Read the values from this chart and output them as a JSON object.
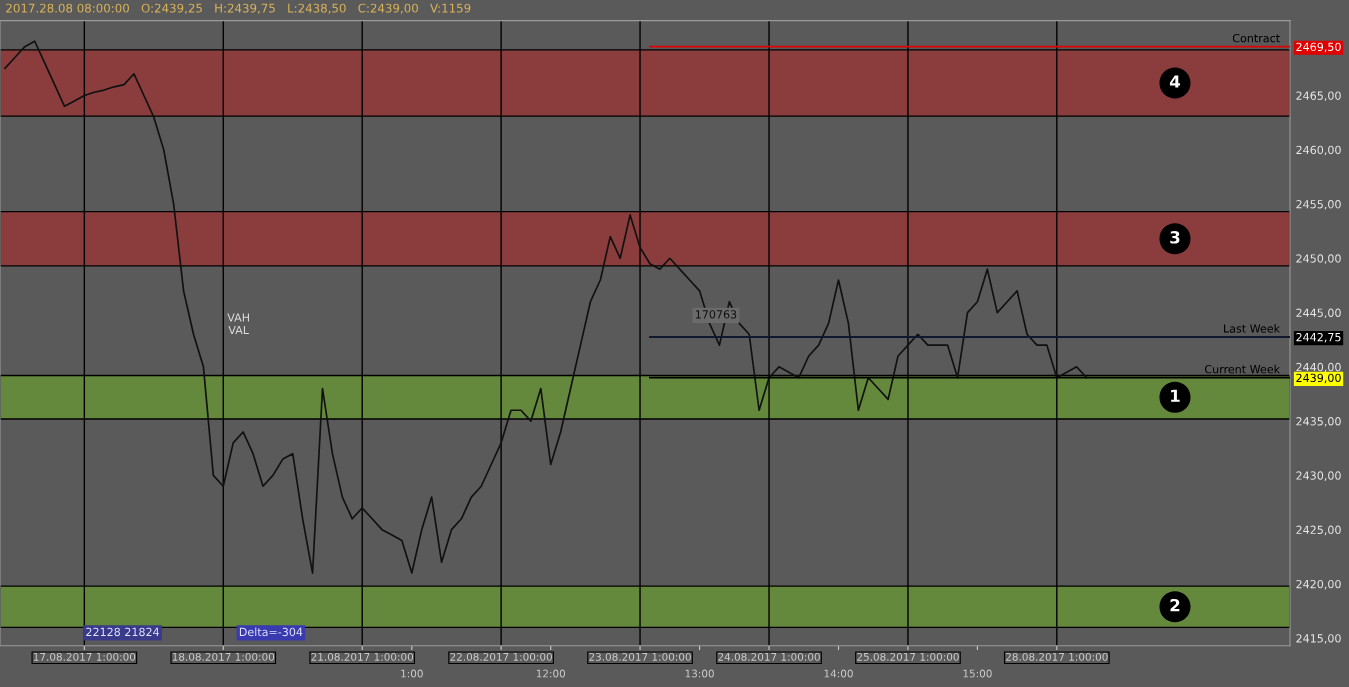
{
  "chart_data": {
    "type": "line",
    "title": "2017.28.08 08:00:00   O:2439,25   H:2439,75   L:2438,50   C:2439,00   V:1159",
    "categories": [
      null,
      null,
      null,
      null,
      null,
      null,
      null,
      null,
      "17.08.2017 1:00:00",
      null,
      null,
      null,
      null,
      null,
      null,
      null,
      null,
      null,
      null,
      null,
      null,
      null,
      "18.08.2017 1:00:00",
      null,
      null,
      null,
      null,
      null,
      null,
      null,
      null,
      null,
      null,
      null,
      null,
      null,
      "21.08.2017 1:00:00",
      null,
      null,
      null,
      null,
      "1:00",
      null,
      null,
      null,
      null,
      null,
      null,
      null,
      null,
      "22.08.2017 1:00:00",
      null,
      null,
      null,
      null,
      "12:00",
      null,
      null,
      null,
      null,
      null,
      null,
      null,
      null,
      "23.08.2017 1:00:00",
      null,
      null,
      null,
      null,
      null,
      "13:00",
      null,
      null,
      null,
      null,
      null,
      null,
      "24.08.2017 1:00:00",
      null,
      null,
      null,
      null,
      null,
      null,
      "14:00",
      null,
      null,
      null,
      null,
      null,
      null,
      "25.08.2017 1:00:00",
      null,
      null,
      null,
      null,
      null,
      null,
      "15:00",
      null,
      null,
      null,
      null,
      null,
      null,
      null,
      "28.08.2017 1:00:00",
      null,
      null,
      null,
      null,
      null,
      null,
      null,
      null,
      null,
      null,
      null,
      null,
      null,
      null,
      null,
      null,
      null,
      null,
      null,
      null,
      null,
      null,
      null
    ],
    "series": [
      {
        "color": "#111111",
        "values": [
          2467.5,
          2468.5,
          2469.5,
          2470,
          2468,
          2466,
          2464,
          2464.5,
          2465,
          2465.3,
          2465.5,
          2465.8,
          2466,
          2467,
          2465,
          2463,
          2460,
          2455,
          2447,
          2443,
          2440,
          2430,
          2429,
          2433,
          2434,
          2432,
          2429,
          2430,
          2431.5,
          2432,
          2426,
          2421,
          2438,
          2432,
          2428,
          2426,
          2427,
          2426,
          2425,
          2424.5,
          2424,
          2421,
          2425,
          2428,
          2422,
          2425,
          2426,
          2428,
          2429,
          2431,
          2433,
          2436,
          2436,
          2435,
          2438,
          2431,
          2434,
          2438,
          2442,
          2446,
          2448,
          2452,
          2450,
          2454,
          2451,
          2449.5,
          2449,
          2450,
          2449,
          2448,
          2447,
          2444,
          2442,
          2446,
          2444,
          2443,
          2436,
          2439,
          2440,
          2439.5,
          2439,
          2441,
          2442,
          2444,
          2448,
          2444,
          2436,
          2439,
          2438,
          2437,
          2441,
          2442,
          2443,
          2442,
          2442,
          2442,
          2439,
          2445,
          2446,
          2449,
          2445,
          2446,
          2447,
          2443,
          2442,
          2442,
          2439,
          2439.5,
          2440,
          2439,
          null,
          null,
          null,
          null,
          null,
          null,
          null,
          null,
          null,
          null,
          null,
          null,
          null,
          null,
          null,
          null,
          null,
          null,
          null,
          null
        ]
      }
    ],
    "ylim": [
      2414.3,
      2471.9
    ],
    "yticks": [
      {
        "value": 2415,
        "label": "2415,00"
      },
      {
        "value": 2420,
        "label": "2420,00"
      },
      {
        "value": 2425,
        "label": "2425,00"
      },
      {
        "value": 2430,
        "label": "2430,00"
      },
      {
        "value": 2435,
        "label": "2435,00"
      },
      {
        "value": 2439,
        "label": "2439,00"
      },
      {
        "value": 2440,
        "label": "2440,00"
      },
      {
        "value": 2442.75,
        "label": "2442,75"
      },
      {
        "value": 2445,
        "label": "2445,00"
      },
      {
        "value": 2450,
        "label": "2450,00"
      },
      {
        "value": 2455,
        "label": "2455,00"
      },
      {
        "value": 2460,
        "label": "2460,00"
      },
      {
        "value": 2465,
        "label": "2465,00"
      },
      {
        "value": 2469.5,
        "label": "2469,50"
      }
    ],
    "grid": "x",
    "legend": false,
    "marker": "none",
    "line_style": "solid",
    "bands": [
      {
        "axis": "y",
        "from": 2463.1,
        "to": 2469.2,
        "label": "4",
        "color": "#8b3d3d"
      },
      {
        "axis": "y",
        "from": 2449.3,
        "to": 2454.3,
        "label": "3",
        "color": "#8b3d3d"
      },
      {
        "axis": "y",
        "from": 2435.2,
        "to": 2439.2,
        "label": "1",
        "color": "#64883c"
      },
      {
        "axis": "y",
        "from": 2416,
        "to": 2419.8,
        "label": "2",
        "color": "#64883c"
      }
    ],
    "ref_lines": [
      {
        "axis": "y",
        "value": 2469.5,
        "label": "Contract",
        "color": "#e00000"
      },
      {
        "axis": "y",
        "value": 2442.75,
        "label": "Last Week",
        "color": "#101830"
      },
      {
        "axis": "y",
        "value": 2439,
        "label": "Current Week",
        "color": "#000000"
      }
    ],
    "annotations": [
      "170763",
      "VAH",
      "VAL",
      "22128 21824",
      "Delta=-304"
    ]
  }
}
